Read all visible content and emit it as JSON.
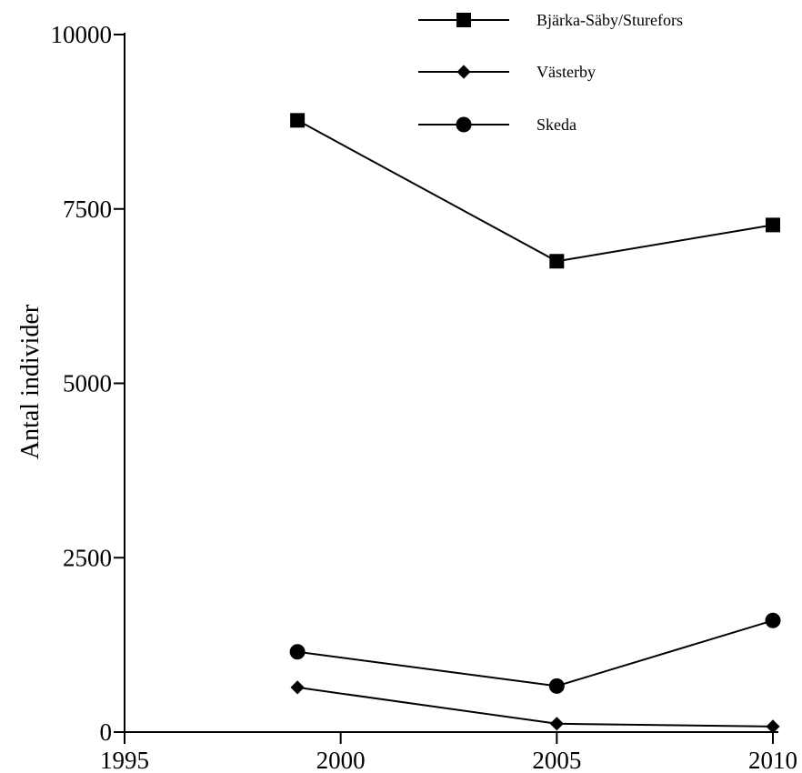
{
  "chart_data": {
    "type": "line",
    "title": "",
    "xlabel": "",
    "ylabel": "Antal individer",
    "xlim": [
      1995,
      2010
    ],
    "ylim": [
      0,
      10000
    ],
    "x_ticks": [
      "1995",
      "2000",
      "2005",
      "2010"
    ],
    "y_ticks": [
      "0",
      "2500",
      "5000",
      "7500",
      "10000"
    ],
    "grid": false,
    "legend_position": "top-right",
    "series": [
      {
        "name": "Bjärka-Säby/Sturefors",
        "marker": "square",
        "x": [
          1999,
          2005,
          2010
        ],
        "y": [
          8770,
          6750,
          7270
        ]
      },
      {
        "name": "Västerby",
        "marker": "diamond",
        "x": [
          1999,
          2005,
          2010
        ],
        "y": [
          640,
          120,
          80
        ]
      },
      {
        "name": "Skeda",
        "marker": "circle",
        "x": [
          1999,
          2005,
          2010
        ],
        "y": [
          1150,
          660,
          1600
        ]
      }
    ]
  }
}
